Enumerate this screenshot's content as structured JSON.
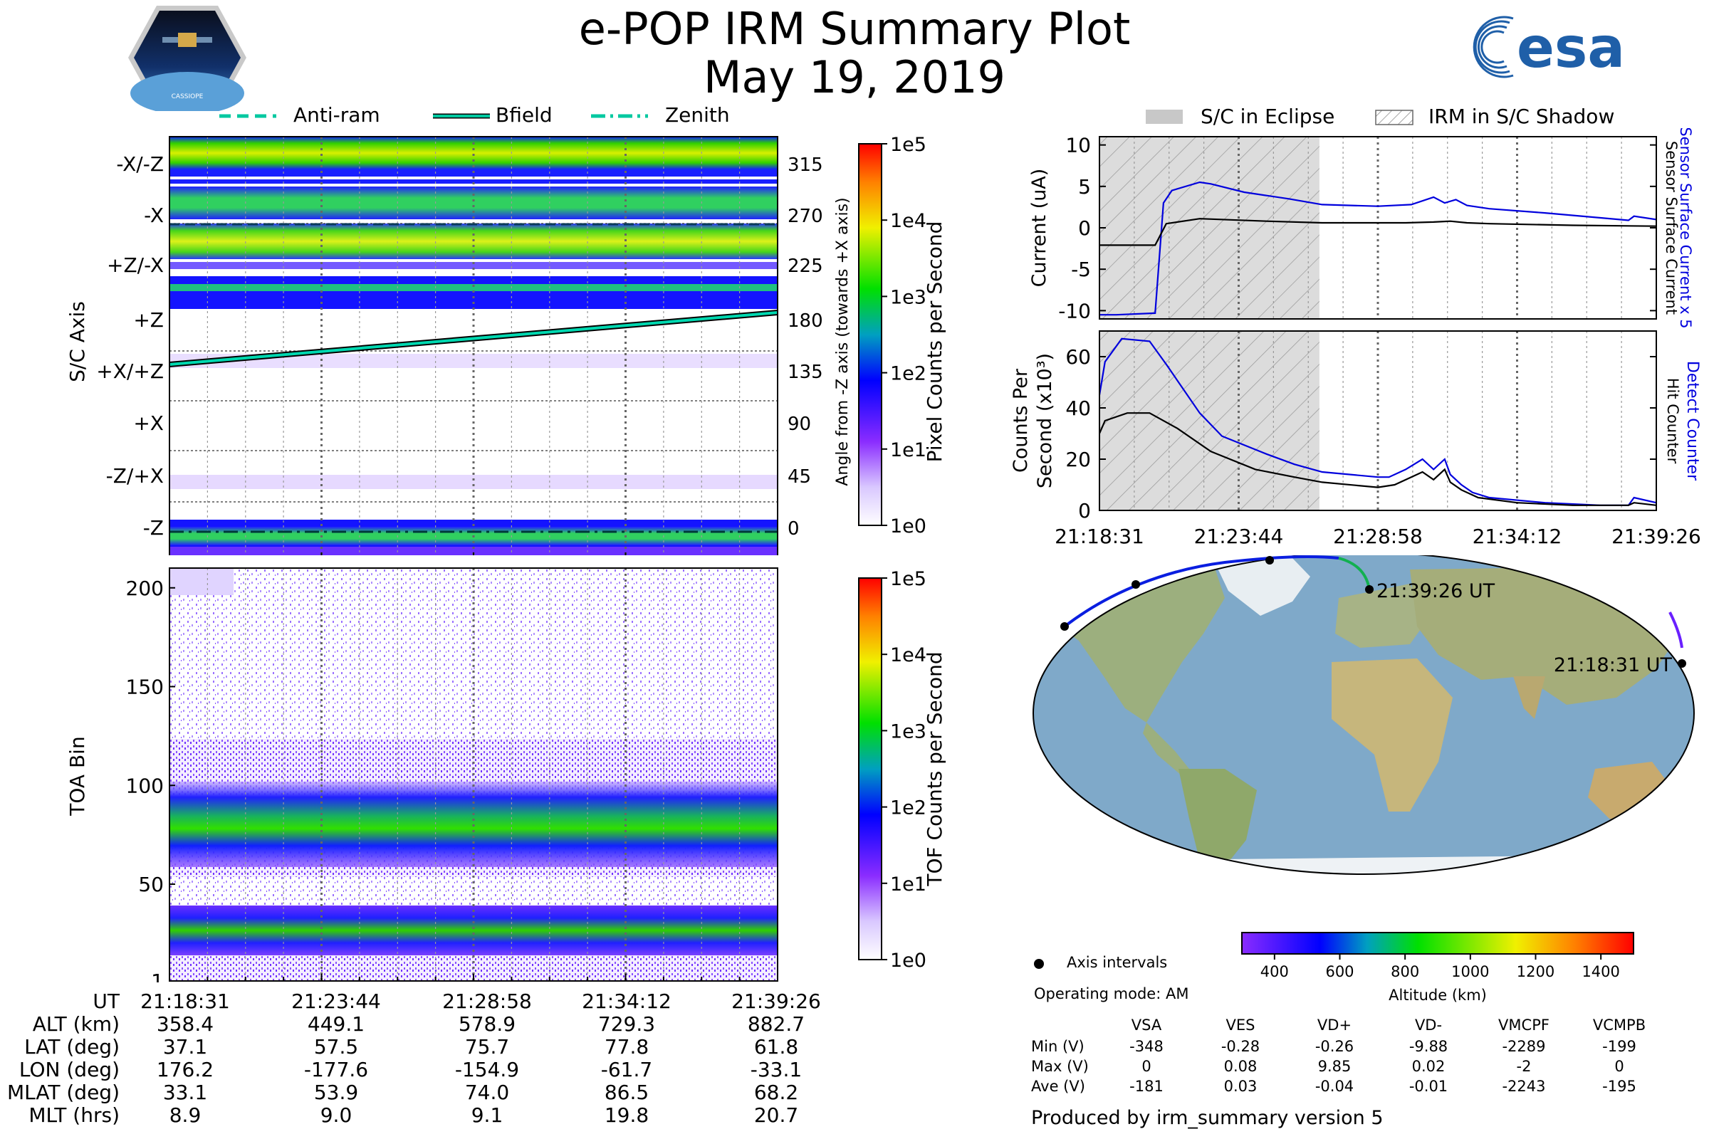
{
  "header": {
    "title": "e-POP IRM Summary Plot",
    "date": "May 19, 2019",
    "left_logo_text": "CASSIOPE",
    "right_logo_text": "esa"
  },
  "top_legend": {
    "items": [
      {
        "style": "dashed",
        "label": "Anti-ram"
      },
      {
        "style": "solid",
        "label": "Bfield"
      },
      {
        "style": "dashdot",
        "label": "Zenith"
      }
    ],
    "color": "#00c8a0"
  },
  "right_legend": {
    "eclipse_label": "S/C in Eclipse",
    "shadow_label": "IRM in S/C Shadow"
  },
  "time_ticks": [
    "21:18:31",
    "21:23:44",
    "21:28:58",
    "21:34:12",
    "21:39:26"
  ],
  "chart_data": [
    {
      "type": "heatmap",
      "name": "pixel-counts",
      "ylabel": "S/C Axis",
      "y_tick_labels": [
        "-X/-Z",
        "-X",
        "+Z/-X",
        "+Z",
        "+X/+Z",
        "+X",
        "-Z/+X",
        "-Z"
      ],
      "right_axis_label": "Angle from -Z axis (towards +X axis)",
      "right_tick_labels": [
        "315",
        "270",
        "225",
        "180",
        "135",
        "90",
        "45",
        "0"
      ],
      "colorbar_label": "Pixel Counts per Second",
      "colorbar_ticks": [
        "1e5",
        "1e4",
        "1e3",
        "1e2",
        "1e1",
        "1e0"
      ],
      "bfield_angle_deg": {
        "start": 148,
        "end": 194
      },
      "antiram_angle_deg": 263,
      "zenith_angle_deg": 0
    },
    {
      "type": "heatmap",
      "name": "tof-counts",
      "ylabel": "TOA Bin",
      "y_ticks": [
        1,
        50,
        100,
        150,
        200
      ],
      "ylim": [
        1,
        210
      ],
      "colorbar_label": "TOF Counts per Second",
      "colorbar_ticks": [
        "1e5",
        "1e4",
        "1e3",
        "1e2",
        "1e1",
        "1e0"
      ]
    },
    {
      "type": "line",
      "name": "surface-current",
      "ylabel": "Current (uA)",
      "ylim": [
        -11,
        11
      ],
      "y_ticks": [
        10,
        5,
        0,
        -5,
        -10
      ],
      "right_labels": [
        "Sensor Surface Current x 5",
        "Sensor Surface Current"
      ],
      "series": [
        {
          "name": "Sensor Surface Current x 5",
          "color": "#0000dd",
          "x_frac": [
            0,
            0.03,
            0.1,
            0.115,
            0.13,
            0.18,
            0.2,
            0.26,
            0.34,
            0.4,
            0.5,
            0.56,
            0.6,
            0.62,
            0.64,
            0.66,
            0.7,
            0.8,
            0.9,
            0.95,
            0.96,
            1
          ],
          "values": [
            -10.5,
            -10.5,
            -10.3,
            3,
            4.5,
            5.5,
            5.3,
            4.3,
            3.5,
            2.8,
            2.6,
            2.8,
            3.7,
            3,
            3.4,
            2.7,
            2.3,
            1.8,
            1.2,
            0.9,
            1.4,
            1
          ]
        },
        {
          "name": "Sensor Surface Current",
          "color": "#000000",
          "x_frac": [
            0,
            0.1,
            0.12,
            0.18,
            0.3,
            0.4,
            0.55,
            0.6,
            0.63,
            0.66,
            0.7,
            0.85,
            1
          ],
          "values": [
            -2.1,
            -2.1,
            0.5,
            1.1,
            0.8,
            0.6,
            0.6,
            0.7,
            0.8,
            0.6,
            0.5,
            0.3,
            0.2
          ]
        }
      ],
      "eclipse_x_frac": [
        0,
        0.395
      ],
      "shadow_x_frac": [
        0,
        0.395
      ]
    },
    {
      "type": "line",
      "name": "detect-counter",
      "ylabel": "Counts Per Second (x10³)",
      "ylim": [
        0,
        70
      ],
      "y_ticks": [
        0,
        20,
        40,
        60
      ],
      "right_labels": [
        "Detect Counter",
        "Hit Counter"
      ],
      "series": [
        {
          "name": "Detect Counter",
          "color": "#0000dd",
          "x_frac": [
            0,
            0.01,
            0.04,
            0.09,
            0.12,
            0.18,
            0.22,
            0.3,
            0.35,
            0.4,
            0.5,
            0.52,
            0.55,
            0.58,
            0.6,
            0.62,
            0.63,
            0.65,
            0.67,
            0.7,
            0.8,
            0.9,
            0.95,
            0.96,
            1
          ],
          "values": [
            45,
            58,
            67,
            66,
            57,
            38,
            29,
            22,
            18,
            15,
            13,
            13,
            16,
            20,
            16,
            20,
            14,
            10,
            7,
            5,
            3,
            2,
            2,
            5,
            3
          ]
        },
        {
          "name": "Hit Counter",
          "color": "#000000",
          "x_frac": [
            0,
            0.01,
            0.05,
            0.09,
            0.14,
            0.2,
            0.28,
            0.35,
            0.4,
            0.5,
            0.53,
            0.56,
            0.58,
            0.6,
            0.62,
            0.63,
            0.65,
            0.68,
            0.75,
            0.85,
            0.95,
            0.96,
            1
          ],
          "values": [
            30,
            35,
            38,
            38,
            32,
            23,
            16,
            13,
            11,
            9,
            10,
            13,
            15,
            12,
            16,
            11,
            8,
            5,
            3,
            2,
            2,
            3,
            2
          ]
        }
      ],
      "eclipse_x_frac": [
        0,
        0.395
      ],
      "shadow_x_frac": [
        0,
        0.395
      ]
    }
  ],
  "ephemeris": {
    "row_labels": [
      "UT",
      "ALT (km)",
      "LAT (deg)",
      "LON (deg)",
      "MLAT (deg)",
      "MLT (hrs)"
    ],
    "columns": [
      [
        "21:18:31",
        "358.4",
        "37.1",
        "176.2",
        "33.1",
        "8.9"
      ],
      [
        "21:23:44",
        "449.1",
        "57.5",
        "-177.6",
        "53.9",
        "9.0"
      ],
      [
        "21:28:58",
        "578.9",
        "75.7",
        "-154.9",
        "74.0",
        "9.1"
      ],
      [
        "21:34:12",
        "729.3",
        "77.8",
        "-61.7",
        "86.5",
        "19.8"
      ],
      [
        "21:39:26",
        "882.7",
        "61.8",
        "-33.1",
        "68.2",
        "20.7"
      ]
    ]
  },
  "map": {
    "end_label": "21:39:26 UT",
    "start_label": "21:18:31 UT",
    "legend_label": "Axis intervals",
    "operating_mode": "Operating mode: AM",
    "altitude_label": "Altitude (km)",
    "altitude_ticks": [
      "400",
      "600",
      "800",
      "1000",
      "1200",
      "1400"
    ]
  },
  "voltages": {
    "headers": [
      "VSA",
      "VES",
      "VD+",
      "VD-",
      "VMCPF",
      "VCMPB"
    ],
    "rows": [
      {
        "label": "Min (V)",
        "values": [
          "-348",
          "-0.28",
          "-0.26",
          "-9.88",
          "-2289",
          "-199"
        ]
      },
      {
        "label": "Max (V)",
        "values": [
          "0",
          "0.08",
          "9.85",
          "0.02",
          "-2",
          "0"
        ]
      },
      {
        "label": "Ave (V)",
        "values": [
          "-181",
          "0.03",
          "-0.04",
          "-0.01",
          "-2243",
          "-195"
        ]
      }
    ]
  },
  "footer": {
    "produced_by": "Produced by irm_summary version 5"
  }
}
